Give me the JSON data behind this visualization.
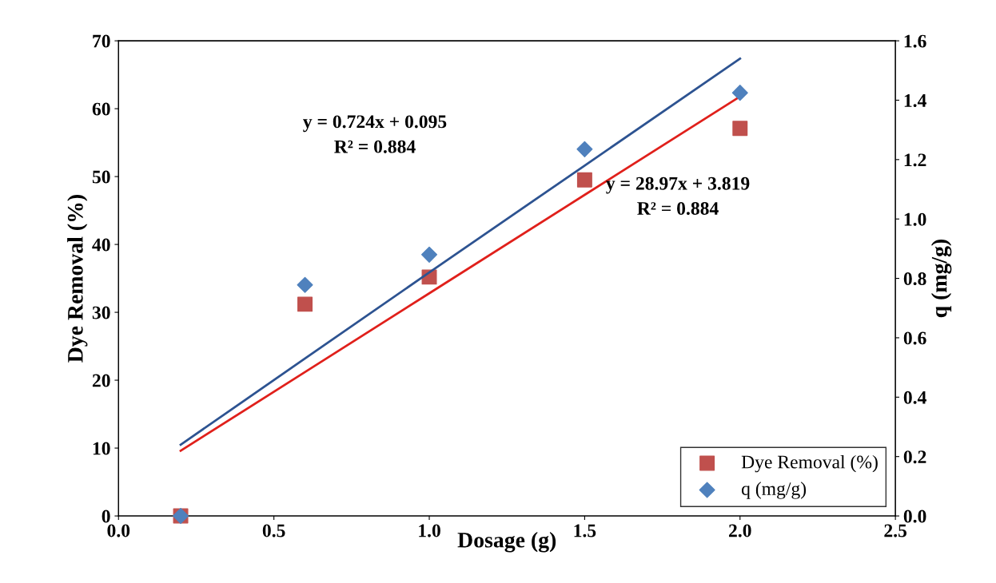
{
  "chart_data": {
    "type": "scatter",
    "xlabel": "Dosage (g)",
    "ylabel": "Dye Removal (%)",
    "y2label": "q (mg/g)",
    "xlim": [
      0,
      2.5
    ],
    "xticks": [
      {
        "value": 0,
        "label": "0.0"
      },
      {
        "value": 0.5,
        "label": "0.5"
      },
      {
        "value": 1,
        "label": "1.0"
      },
      {
        "value": 1.5,
        "label": "1.5"
      },
      {
        "value": 2,
        "label": "2.0"
      },
      {
        "value": 2.5,
        "label": "2.5"
      }
    ],
    "ylim": [
      0,
      70
    ],
    "yticks": [
      0,
      10,
      20,
      30,
      40,
      50,
      60,
      70
    ],
    "y2lim": [
      0,
      1.6
    ],
    "y2ticks": [
      {
        "value": 0,
        "label": "0.0"
      },
      {
        "value": 0.2,
        "label": "0.2"
      },
      {
        "value": 0.4,
        "label": "0.4"
      },
      {
        "value": 0.6,
        "label": "0.6"
      },
      {
        "value": 0.8,
        "label": "0.8"
      },
      {
        "value": 1.0,
        "label": "1.0"
      },
      {
        "value": 1.2,
        "label": "1.2"
      },
      {
        "value": 1.4,
        "label": "1.4"
      },
      {
        "value": 1.6,
        "label": "1.6"
      }
    ],
    "x": [
      0.2,
      0.6,
      1.0,
      1.5,
      2.0
    ],
    "series": [
      {
        "name": "Dye Removal (%)",
        "marker": "square",
        "color": "#c0504d",
        "values": [
          0,
          31.2,
          35.2,
          49.5,
          57.1
        ]
      },
      {
        "name": "q (mg/g)",
        "marker": "diamond",
        "color": "#4f81bd",
        "axis": "y2",
        "values": [
          0,
          0.778,
          0.88,
          1.235,
          1.425
        ]
      },
      {
        "type": "line",
        "color": "#e0201b",
        "values": [
          9.6,
          21.2,
          32.8,
          47.3,
          61.8
        ]
      },
      {
        "type": "line",
        "color": "#2d5391",
        "axis": "y2",
        "values": [
          0.24,
          0.53,
          0.82,
          1.18,
          1.54
        ]
      }
    ],
    "annotations": [
      "y = 0.724x + 0.095\nR² = 0.884",
      "y = 28.97x + 3.819\nR² = 0.884"
    ],
    "legend": "bottom right",
    "grid": false
  }
}
